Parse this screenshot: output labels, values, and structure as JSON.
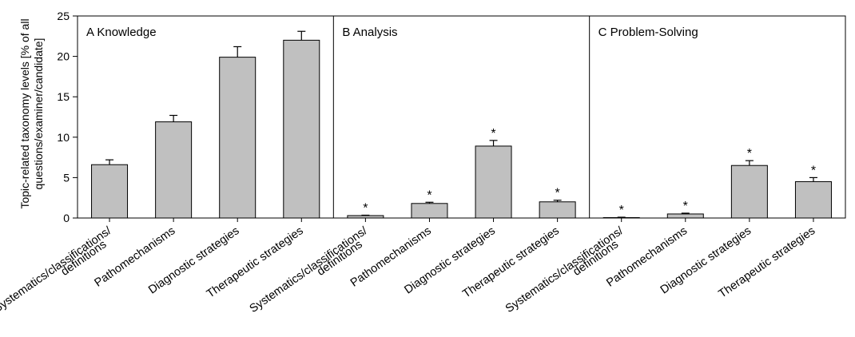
{
  "chart_data": {
    "type": "bar",
    "ylabel_lines": [
      "Topic-related taxonomy levels [% of all",
      "questions/examiner/candidate]"
    ],
    "ylim": [
      0,
      25
    ],
    "yticks": [
      "0",
      "5",
      "10",
      "15",
      "20",
      "25"
    ],
    "ytick_values": [
      0,
      5,
      10,
      15,
      20,
      25
    ],
    "bar_color": "#c0c0c0",
    "significance_marker": "*",
    "panels": [
      {
        "title": "A Knowledge",
        "categories": [
          [
            "Systematics/classifications/",
            "definitions"
          ],
          [
            "Pathomechanisms"
          ],
          [
            "Diagnostic strategies"
          ],
          [
            "Therapeutic strategies"
          ]
        ],
        "values": [
          6.6,
          11.9,
          19.9,
          22.0
        ],
        "errors": [
          0.6,
          0.8,
          1.3,
          1.1
        ],
        "significant": [
          false,
          false,
          false,
          false
        ]
      },
      {
        "title": "B Analysis",
        "categories": [
          [
            "Systematics/classifications/",
            "definitions"
          ],
          [
            "Pathomechanisms"
          ],
          [
            "Diagnostic strategies"
          ],
          [
            "Therapeutic strategies"
          ]
        ],
        "values": [
          0.3,
          1.8,
          8.9,
          2.0
        ],
        "errors": [
          0.05,
          0.15,
          0.7,
          0.2
        ],
        "significant": [
          true,
          true,
          true,
          true
        ]
      },
      {
        "title": "C Problem-Solving",
        "categories": [
          [
            "Systematics/classifications/",
            "definitions"
          ],
          [
            "Pathomechanisms"
          ],
          [
            "Diagnostic strategies"
          ],
          [
            "Therapeutic strategies"
          ]
        ],
        "values": [
          0.05,
          0.5,
          6.5,
          4.5
        ],
        "errors": [
          0.05,
          0.1,
          0.6,
          0.5
        ],
        "significant": [
          true,
          true,
          true,
          true
        ]
      }
    ]
  }
}
